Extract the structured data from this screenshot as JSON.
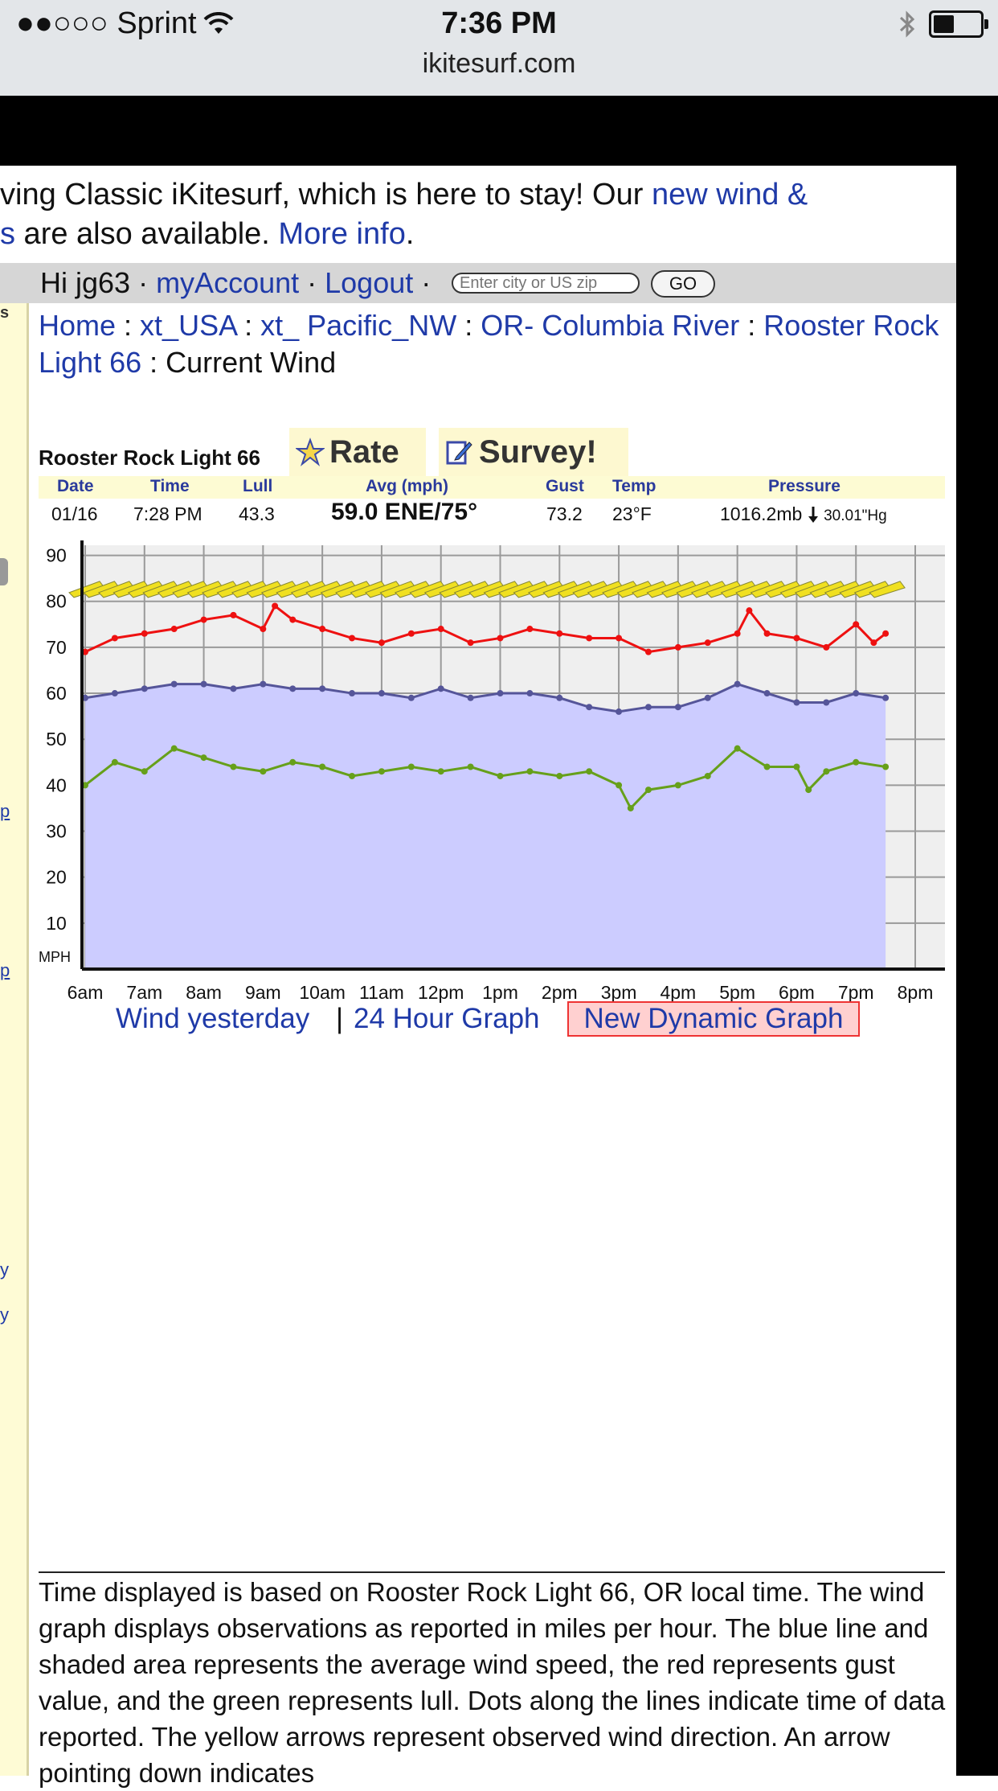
{
  "status_bar": {
    "carrier": "●●○○○ Sprint",
    "time": "7:36 PM",
    "url": "ikitesurf.com",
    "battery_level": 0.45
  },
  "announcement": {
    "line1_text": "ving Classic iKitesurf, which is here to stay! Our ",
    "line1_link": "new wind &",
    "line2_link_prefix": "s",
    "line2_text": " are also available. ",
    "more_info": "More info",
    "period": "."
  },
  "user_bar": {
    "greeting": "Hi jg63",
    "separator": " · ",
    "my_account": "myAccount",
    "logout": "Logout",
    "search_placeholder": "Enter city or US zip",
    "go_label": "GO"
  },
  "breadcrumb": {
    "items": [
      "Home",
      "xt_USA",
      "xt_ Pacific_NW",
      "OR- Columbia River",
      "Rooster Rock Light 66"
    ],
    "separator": " : ",
    "current": "Current Wind"
  },
  "station": {
    "name": "Rooster Rock Light 66",
    "rate_label": "Rate",
    "survey_label": "Survey!"
  },
  "observation": {
    "headers": {
      "date": "Date",
      "time": "Time",
      "lull": "Lull",
      "avg": "Avg (mph)",
      "gust": "Gust",
      "temp": "Temp",
      "pressure": "Pressure"
    },
    "values": {
      "date": "01/16",
      "time": "7:28 PM",
      "lull": "43.3",
      "avg": "59.0 ENE/75°",
      "gust": "73.2",
      "temp": "23°F",
      "pressure_mb": "1016.2mb",
      "pressure_hg": "30.01\"Hg"
    }
  },
  "chart_data": {
    "type": "line",
    "ylabel": "MPH",
    "ylim": [
      0,
      90
    ],
    "yticks": [
      10,
      20,
      30,
      40,
      50,
      60,
      70,
      80,
      90
    ],
    "x_labels": [
      "6am",
      "7am",
      "8am",
      "9am",
      "10am",
      "11am",
      "12pm",
      "1pm",
      "2pm",
      "3pm",
      "4pm",
      "5pm",
      "6pm",
      "7pm",
      "8pm"
    ],
    "x_hours": [
      6,
      7,
      8,
      9,
      10,
      11,
      12,
      13,
      14,
      15,
      16,
      17,
      18,
      19,
      20
    ],
    "grid": true,
    "direction_arrows": {
      "color": "#f0e020",
      "level": 84
    },
    "series": [
      {
        "key": "gust",
        "color": "#ee1111",
        "x": [
          6.0,
          6.5,
          7.0,
          7.5,
          8.0,
          8.5,
          9.0,
          9.2,
          9.5,
          10.0,
          10.5,
          11.0,
          11.5,
          12.0,
          12.5,
          13.0,
          13.5,
          14.0,
          14.5,
          15.0,
          15.5,
          16.0,
          16.5,
          17.0,
          17.2,
          17.5,
          18.0,
          18.5,
          19.0,
          19.3,
          19.5
        ],
        "y": [
          69,
          72,
          73,
          74,
          76,
          77,
          74,
          79,
          76,
          74,
          72,
          71,
          73,
          74,
          71,
          72,
          74,
          73,
          72,
          72,
          69,
          70,
          71,
          73,
          78,
          73,
          72,
          70,
          75,
          71,
          73
        ]
      },
      {
        "key": "avg",
        "color": "#555599",
        "x": [
          6.0,
          6.5,
          7.0,
          7.5,
          8.0,
          8.5,
          9.0,
          9.5,
          10.0,
          10.5,
          11.0,
          11.5,
          12.0,
          12.5,
          13.0,
          13.5,
          14.0,
          14.5,
          15.0,
          15.5,
          16.0,
          16.5,
          17.0,
          17.5,
          18.0,
          18.5,
          19.0,
          19.5
        ],
        "y": [
          59,
          60,
          61,
          62,
          62,
          61,
          62,
          61,
          61,
          60,
          60,
          59,
          61,
          59,
          60,
          60,
          59,
          57,
          56,
          57,
          57,
          59,
          62,
          60,
          58,
          58,
          60,
          59
        ]
      },
      {
        "key": "lull",
        "color": "#66a01a",
        "x": [
          6.0,
          6.5,
          7.0,
          7.5,
          8.0,
          8.5,
          9.0,
          9.5,
          10.0,
          10.5,
          11.0,
          11.5,
          12.0,
          12.5,
          13.0,
          13.5,
          14.0,
          14.5,
          15.0,
          15.2,
          15.5,
          16.0,
          16.5,
          17.0,
          17.5,
          18.0,
          18.2,
          18.5,
          19.0,
          19.5
        ],
        "y": [
          40,
          45,
          43,
          48,
          46,
          44,
          43,
          45,
          44,
          42,
          43,
          44,
          43,
          44,
          42,
          43,
          42,
          43,
          40,
          35,
          39,
          40,
          42,
          48,
          44,
          44,
          39,
          43,
          45,
          44
        ]
      }
    ]
  },
  "graph_links": {
    "yesterday": "Wind yesterday",
    "sep": "|",
    "hour24": "24 Hour Graph",
    "dynamic": "New Dynamic Graph"
  },
  "description": {
    "text": "Time displayed is based on Rooster Rock Light 66, OR local time. The wind graph displays observations as reported in miles per hour. The blue line and shaded area represents the average wind speed, the red represents gust value, and the green represents lull. Dots along the lines indicate time of data reported. The yellow arrows represent observed wind direction. An arrow pointing down indicates"
  },
  "left_strip": {
    "chars": [
      "s",
      "p",
      "p",
      "y",
      "y"
    ]
  }
}
